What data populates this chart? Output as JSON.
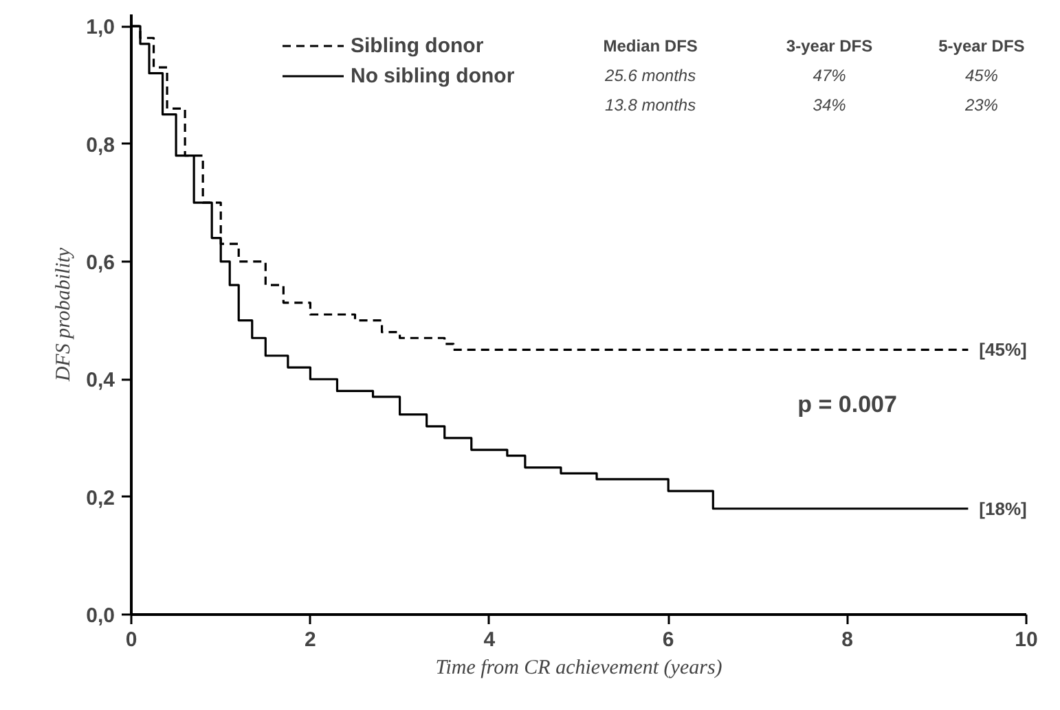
{
  "chart_data": {
    "type": "step",
    "xlabel": "Time from CR achievement (years)",
    "ylabel": "DFS probability",
    "xlim": [
      0,
      10
    ],
    "ylim": [
      0,
      1.02
    ],
    "xticks": [
      0,
      2,
      4,
      6,
      8,
      10
    ],
    "yticks": [
      {
        "value": 0,
        "label": "0,0"
      },
      {
        "value": 0.2,
        "label": "0,2"
      },
      {
        "value": 0.4,
        "label": "0,4"
      },
      {
        "value": 0.6,
        "label": "0,6"
      },
      {
        "value": 0.8,
        "label": "0,8"
      },
      {
        "value": 1.0,
        "label": "1,0"
      }
    ],
    "grid": false,
    "legend": "top",
    "marker": "none",
    "series": [
      {
        "name": "Sibling donor",
        "color": "#000000",
        "line_style": "dashed",
        "x": [
          0,
          0.1,
          0.25,
          0.4,
          0.6,
          0.8,
          1.0,
          1.2,
          1.5,
          1.7,
          2.0,
          2.5,
          2.8,
          3.0,
          3.5,
          3.6,
          9.35
        ],
        "values": [
          1.0,
          0.98,
          0.93,
          0.86,
          0.78,
          0.7,
          0.63,
          0.6,
          0.56,
          0.53,
          0.51,
          0.5,
          0.48,
          0.47,
          0.46,
          0.45,
          0.45
        ]
      },
      {
        "name": "No sibling donor",
        "color": "#000000",
        "line_style": "solid",
        "x": [
          0,
          0.1,
          0.2,
          0.35,
          0.5,
          0.7,
          0.9,
          1.0,
          1.1,
          1.2,
          1.35,
          1.5,
          1.75,
          2.0,
          2.3,
          2.7,
          3.0,
          3.3,
          3.5,
          3.8,
          4.2,
          4.4,
          4.8,
          5.2,
          6.0,
          6.5,
          9.35
        ],
        "values": [
          1.0,
          0.97,
          0.92,
          0.85,
          0.78,
          0.7,
          0.64,
          0.6,
          0.56,
          0.5,
          0.47,
          0.44,
          0.42,
          0.4,
          0.38,
          0.37,
          0.34,
          0.32,
          0.3,
          0.28,
          0.27,
          0.25,
          0.24,
          0.23,
          0.21,
          0.18,
          0.18
        ]
      }
    ],
    "annotations": [
      "Median DFS",
      "3-year DFS",
      "5-year DFS",
      "25.6 months",
      "47%",
      "45%",
      "13.8 months",
      "34%",
      "23%",
      "p = 0.007",
      {
        "text": "[45%]",
        "x": 9.35,
        "y": 0.45
      },
      {
        "text": "[18%]",
        "x": 9.35,
        "y": 0.18
      }
    ]
  }
}
